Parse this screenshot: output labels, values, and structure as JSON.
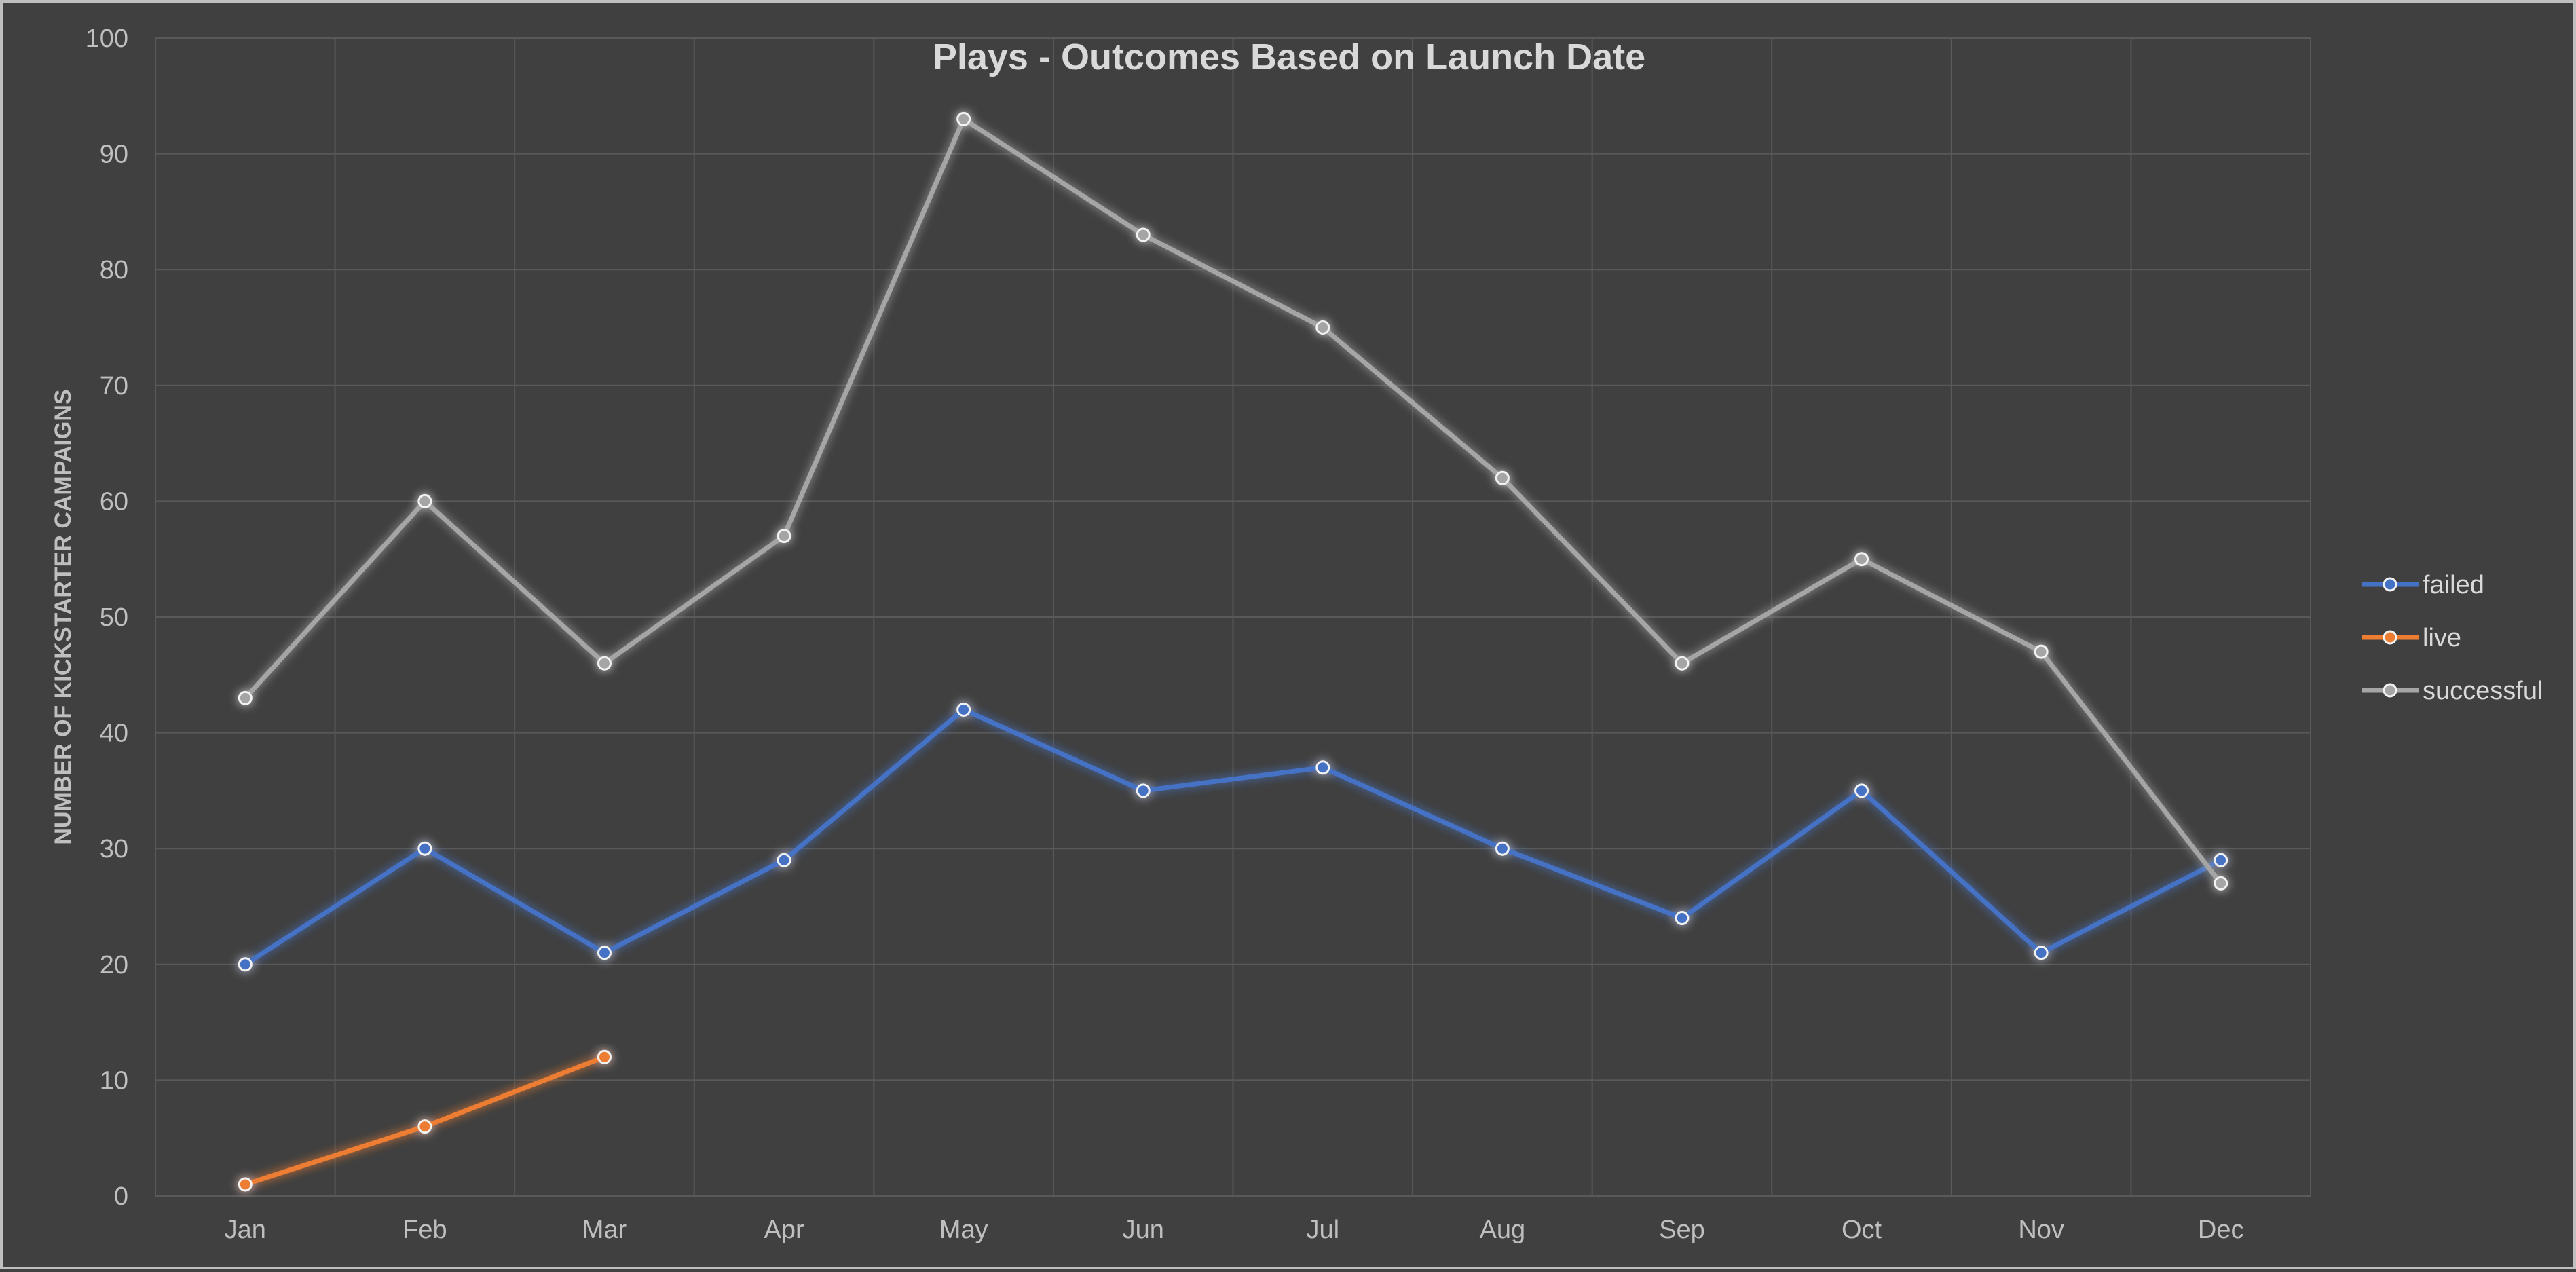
{
  "chart_data": {
    "type": "line",
    "title": "Plays - Outcomes Based on Launch Date",
    "xlabel": "",
    "ylabel": "NUMBER OF KICKSTARTER CAMPAIGNS",
    "ylim": [
      0,
      100
    ],
    "yticks": [
      0,
      10,
      20,
      30,
      40,
      50,
      60,
      70,
      80,
      90,
      100
    ],
    "grid": true,
    "legend_position": "right",
    "categories": [
      "Jan",
      "Feb",
      "Mar",
      "Apr",
      "May",
      "Jun",
      "Jul",
      "Aug",
      "Sep",
      "Oct",
      "Nov",
      "Dec"
    ],
    "series": [
      {
        "name": "failed",
        "color": "#4472c4",
        "values": [
          20,
          30,
          21,
          29,
          42,
          35,
          37,
          30,
          24,
          35,
          21,
          29
        ]
      },
      {
        "name": "live",
        "color": "#ed7d31",
        "values": [
          1,
          6,
          12,
          null,
          null,
          null,
          null,
          null,
          null,
          null,
          null,
          null
        ]
      },
      {
        "name": "successful",
        "color": "#a5a5a5",
        "values": [
          43,
          60,
          46,
          57,
          93,
          83,
          75,
          62,
          46,
          55,
          47,
          27
        ]
      }
    ]
  }
}
